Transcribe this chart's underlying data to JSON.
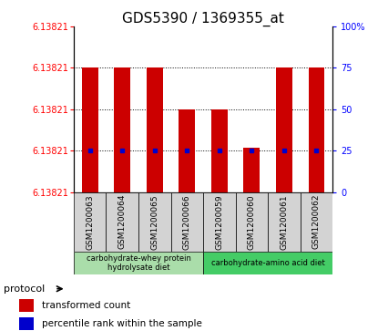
{
  "title": "GDS5390 / 1369355_at",
  "samples": [
    "GSM1200063",
    "GSM1200064",
    "GSM1200065",
    "GSM1200066",
    "GSM1200059",
    "GSM1200060",
    "GSM1200061",
    "GSM1200062"
  ],
  "bar_heights": [
    75,
    75,
    75,
    50,
    50,
    27,
    75,
    75
  ],
  "percentile_ranks": [
    25,
    25,
    25,
    25,
    25,
    25,
    25,
    25
  ],
  "y_label_value": "6.13821",
  "bar_color": "#cc0000",
  "percentile_color": "#0000cc",
  "bg_color": "#ffffff",
  "protocol_groups": [
    {
      "label": "carbohydrate-whey protein\nhydrolysate diet",
      "start": 0,
      "end": 4,
      "color": "#aaddaa"
    },
    {
      "label": "carbohydrate-amino acid diet",
      "start": 4,
      "end": 8,
      "color": "#44cc66"
    }
  ],
  "legend_red_label": "transformed count",
  "legend_blue_label": "percentile rank within the sample",
  "protocol_label": "protocol",
  "title_fontsize": 11,
  "sample_fontsize": 6.5
}
